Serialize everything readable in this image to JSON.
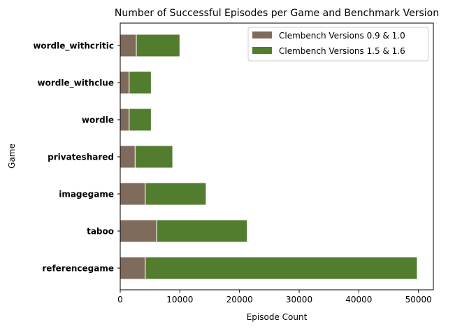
{
  "chart_data": {
    "type": "bar",
    "orientation": "horizontal",
    "stacked": true,
    "title": "Number of Successful Episodes per Game and Benchmark Version",
    "xlabel": "Episode Count",
    "ylabel": "Game",
    "xlim": [
      0,
      52500
    ],
    "xticks": [
      0,
      10000,
      20000,
      30000,
      40000,
      50000
    ],
    "xtick_labels": [
      "0",
      "10000",
      "20000",
      "30000",
      "40000",
      "50000"
    ],
    "categories": [
      "referencegame",
      "taboo",
      "imagegame",
      "privateshared",
      "wordle",
      "wordle_withclue",
      "wordle_withcritic"
    ],
    "series": [
      {
        "name": "Clembench Versions 0.9 & 1.0",
        "color": "#7f6b5b",
        "values": [
          4200,
          6100,
          4200,
          2500,
          1500,
          1500,
          2700
        ]
      },
      {
        "name": "Clembench Versions 1.5 & 1.6",
        "color": "#537d2e",
        "values": [
          45600,
          15200,
          10200,
          6300,
          3700,
          3700,
          7300
        ]
      }
    ],
    "legend": "upper-right",
    "grid": false
  }
}
